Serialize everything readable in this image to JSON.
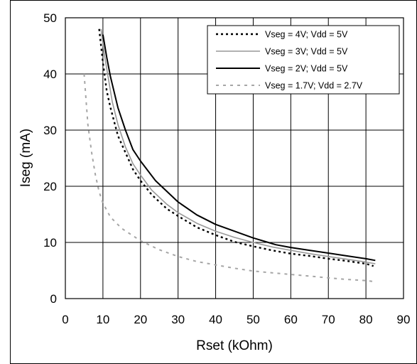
{
  "chart_data": {
    "type": "line",
    "title": "",
    "xlabel": "Rset (kOhm)",
    "ylabel": "Iseg (mA)",
    "xlim": [
      0,
      90
    ],
    "ylim": [
      0,
      50
    ],
    "x_ticks": [
      "0",
      "10",
      "20",
      "30",
      "40",
      "50",
      "60",
      "70",
      "80",
      "90"
    ],
    "y_ticks": [
      "0",
      "10",
      "20",
      "30",
      "40",
      "50"
    ],
    "grid": true,
    "legend_position": "top-right",
    "series": [
      {
        "name": "Vseg = 4V; Vdd = 5V",
        "color": "#000000",
        "dash": "dotted",
        "x": [
          9.0,
          10.0,
          11.0,
          12.0,
          14.0,
          16.0,
          18.0,
          20.0,
          23.0,
          27.0,
          30.0,
          35.0,
          40.0,
          45.0,
          50.0,
          55.0,
          60.0,
          65.0,
          70.0,
          75.0,
          80.0,
          82.0
        ],
        "y": [
          48.0,
          42.0,
          37.0,
          34.0,
          29.0,
          26.0,
          23.0,
          21.0,
          18.5,
          16.0,
          14.7,
          12.7,
          11.3,
          10.1,
          9.3,
          8.6,
          8.0,
          7.6,
          7.1,
          6.7,
          6.2,
          5.8
        ]
      },
      {
        "name": "Vseg = 3V; Vdd = 5V",
        "color": "#999999",
        "dash": "solid",
        "x": [
          9.5,
          10.5,
          11.5,
          12.5,
          14.0,
          16.0,
          18.0,
          20.0,
          23.0,
          27.0,
          30.0,
          35.0,
          40.0,
          45.0,
          50.0,
          55.0,
          60.0,
          65.0,
          70.0,
          75.0,
          80.0,
          82.5
        ],
        "y": [
          48.0,
          43.0,
          39.0,
          35.0,
          31.0,
          27.0,
          24.0,
          22.0,
          19.3,
          16.8,
          15.3,
          13.4,
          12.0,
          10.9,
          10.0,
          9.2,
          8.6,
          8.0,
          7.5,
          7.0,
          6.5,
          6.2
        ]
      },
      {
        "name": "Vseg = 2V; Vdd = 5V",
        "color": "#000000",
        "dash": "solid",
        "x": [
          10.0,
          11.0,
          12.0,
          14.0,
          16.0,
          18.0,
          20.0,
          24.0,
          30.0,
          35.0,
          40.0,
          45.0,
          50.0,
          56.0,
          60.0,
          65.0,
          70.0,
          75.0,
          80.0,
          82.5
        ],
        "y": [
          47.0,
          43.0,
          39.5,
          34.0,
          30.0,
          26.5,
          24.5,
          21.0,
          17.2,
          14.9,
          13.2,
          12.0,
          10.8,
          9.6,
          9.1,
          8.6,
          8.1,
          7.6,
          7.1,
          6.8
        ]
      },
      {
        "name": "Vseg = 1.7V; Vdd = 2.7V",
        "color": "#a6a6a6",
        "dash": "dashed",
        "x": [
          5.0,
          6.0,
          7.0,
          8.0,
          9.0,
          10.0,
          12.0,
          15.0,
          20.0,
          25.0,
          30.0,
          35.0,
          40.0,
          45.0,
          50.0,
          55.0,
          60.0,
          65.0,
          70.0,
          75.0,
          80.0,
          82.5
        ],
        "y": [
          40.0,
          31.0,
          26.0,
          22.0,
          19.0,
          17.0,
          14.5,
          12.5,
          10.3,
          8.7,
          7.5,
          6.6,
          6.0,
          5.4,
          4.9,
          4.6,
          4.3,
          4.0,
          3.7,
          3.4,
          3.2,
          3.0
        ]
      }
    ]
  }
}
